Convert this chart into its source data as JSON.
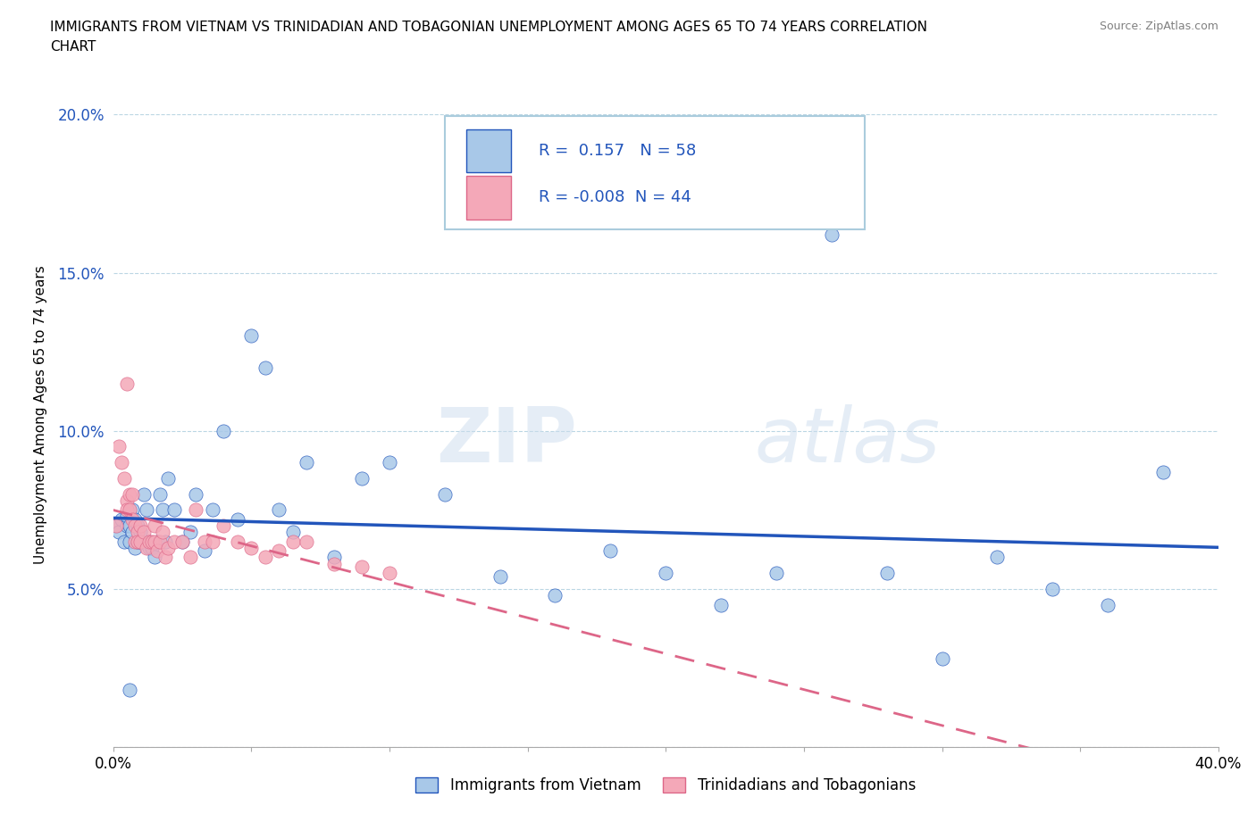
{
  "title_line1": "IMMIGRANTS FROM VIETNAM VS TRINIDADIAN AND TOBAGONIAN UNEMPLOYMENT AMONG AGES 65 TO 74 YEARS CORRELATION",
  "title_line2": "CHART",
  "source": "Source: ZipAtlas.com",
  "ylabel": "Unemployment Among Ages 65 to 74 years",
  "xlim": [
    0.0,
    0.4
  ],
  "ylim": [
    0.0,
    0.21
  ],
  "yticks": [
    0.0,
    0.05,
    0.1,
    0.15,
    0.2
  ],
  "ytick_labels": [
    "",
    "5.0%",
    "10.0%",
    "15.0%",
    "20.0%"
  ],
  "xticks": [
    0.0,
    0.05,
    0.1,
    0.15,
    0.2,
    0.25,
    0.3,
    0.35,
    0.4
  ],
  "xtick_labels": [
    "0.0%",
    "",
    "",
    "",
    "",
    "",
    "",
    "",
    "40.0%"
  ],
  "vietnam_R": "0.157",
  "vietnam_N": "58",
  "trinidad_R": "-0.008",
  "trinidad_N": "44",
  "blue_color": "#A8C8E8",
  "pink_color": "#F4A8B8",
  "trend_blue": "#2255BB",
  "trend_pink": "#DD6688",
  "watermark_zip": "ZIP",
  "watermark_atlas": "atlas",
  "vietnam_x": [
    0.001,
    0.002,
    0.003,
    0.004,
    0.005,
    0.005,
    0.006,
    0.006,
    0.007,
    0.007,
    0.008,
    0.008,
    0.009,
    0.009,
    0.01,
    0.01,
    0.011,
    0.012,
    0.013,
    0.013,
    0.014,
    0.015,
    0.016,
    0.017,
    0.018,
    0.019,
    0.02,
    0.022,
    0.025,
    0.028,
    0.03,
    0.033,
    0.036,
    0.04,
    0.045,
    0.05,
    0.055,
    0.06,
    0.065,
    0.07,
    0.08,
    0.09,
    0.1,
    0.12,
    0.14,
    0.16,
    0.18,
    0.2,
    0.22,
    0.24,
    0.26,
    0.28,
    0.3,
    0.32,
    0.34,
    0.36,
    0.38,
    0.006
  ],
  "vietnam_y": [
    0.07,
    0.068,
    0.072,
    0.065,
    0.07,
    0.073,
    0.065,
    0.07,
    0.068,
    0.075,
    0.072,
    0.063,
    0.07,
    0.065,
    0.068,
    0.065,
    0.08,
    0.075,
    0.065,
    0.063,
    0.063,
    0.06,
    0.065,
    0.08,
    0.075,
    0.065,
    0.085,
    0.075,
    0.065,
    0.068,
    0.08,
    0.062,
    0.075,
    0.1,
    0.072,
    0.13,
    0.12,
    0.075,
    0.068,
    0.09,
    0.06,
    0.085,
    0.09,
    0.08,
    0.054,
    0.048,
    0.062,
    0.055,
    0.045,
    0.055,
    0.162,
    0.055,
    0.028,
    0.06,
    0.05,
    0.045,
    0.087,
    0.018
  ],
  "trinidad_x": [
    0.001,
    0.002,
    0.003,
    0.004,
    0.005,
    0.005,
    0.006,
    0.006,
    0.007,
    0.007,
    0.008,
    0.008,
    0.009,
    0.009,
    0.01,
    0.01,
    0.011,
    0.012,
    0.013,
    0.014,
    0.015,
    0.015,
    0.016,
    0.017,
    0.018,
    0.019,
    0.02,
    0.022,
    0.025,
    0.028,
    0.03,
    0.033,
    0.036,
    0.04,
    0.045,
    0.05,
    0.055,
    0.06,
    0.065,
    0.07,
    0.08,
    0.09,
    0.1,
    0.005
  ],
  "trinidad_y": [
    0.07,
    0.095,
    0.09,
    0.085,
    0.078,
    0.075,
    0.075,
    0.08,
    0.08,
    0.072,
    0.065,
    0.07,
    0.068,
    0.065,
    0.07,
    0.065,
    0.068,
    0.063,
    0.065,
    0.065,
    0.07,
    0.065,
    0.062,
    0.065,
    0.068,
    0.06,
    0.063,
    0.065,
    0.065,
    0.06,
    0.075,
    0.065,
    0.065,
    0.07,
    0.065,
    0.063,
    0.06,
    0.062,
    0.065,
    0.065,
    0.058,
    0.057,
    0.055,
    0.115
  ]
}
